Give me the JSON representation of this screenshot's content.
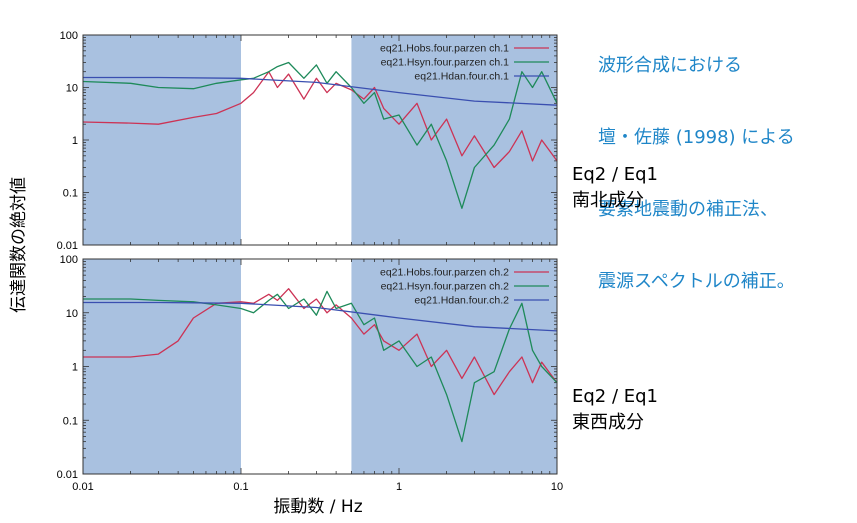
{
  "annotation": {
    "lines": [
      "波形合成における",
      "壇・佐藤 (1998) による",
      "要素地震動の補正法、",
      "震源スペクトルの補正。"
    ],
    "color": "#1f86c8"
  },
  "side_labels": [
    {
      "line1": "Eq2 / Eq1",
      "line2": "南北成分"
    },
    {
      "line1": "Eq2 / Eq1",
      "line2": "東西成分"
    }
  ],
  "colors": {
    "band": "#a9c1e0",
    "obs": "#cc3355",
    "syn": "#1e8a5a",
    "dan": "#3a4fb0"
  },
  "chart_data": [
    {
      "type": "line",
      "panel": "top",
      "x_scale": "log",
      "y_scale": "log",
      "xlim": [
        0.01,
        10
      ],
      "ylim": [
        0.01,
        100
      ],
      "x_ticks": [
        0.01,
        0.1,
        1,
        10
      ],
      "y_ticks": [
        0.01,
        0.1,
        1,
        10,
        100
      ],
      "y_tick_labels": [
        "0.01",
        "0.1",
        "1",
        "10",
        "100"
      ],
      "shaded_x_ranges": [
        [
          0.01,
          0.1
        ],
        [
          0.5,
          10
        ]
      ],
      "legend_position": "top-right",
      "series": [
        {
          "name": "eq21.Hobs.four.parzen ch.1",
          "key": "obs",
          "x": [
            0.01,
            0.02,
            0.03,
            0.05,
            0.07,
            0.1,
            0.12,
            0.15,
            0.17,
            0.2,
            0.25,
            0.3,
            0.35,
            0.4,
            0.5,
            0.6,
            0.7,
            0.8,
            1,
            1.3,
            1.6,
            2,
            2.5,
            3,
            4,
            5,
            6,
            7,
            8,
            10
          ],
          "y": [
            2.2,
            2.1,
            2.0,
            2.7,
            3.2,
            5,
            8,
            20,
            10,
            18,
            6,
            15,
            8,
            12,
            9,
            6,
            10,
            4,
            2,
            5,
            1,
            2.5,
            0.5,
            1.2,
            0.3,
            0.6,
            1.5,
            0.4,
            1.0,
            0.4
          ]
        },
        {
          "name": "eq21.Hsyn.four.parzen ch.1",
          "key": "syn",
          "x": [
            0.01,
            0.02,
            0.03,
            0.05,
            0.07,
            0.1,
            0.12,
            0.15,
            0.17,
            0.2,
            0.25,
            0.3,
            0.35,
            0.4,
            0.5,
            0.6,
            0.7,
            0.8,
            1,
            1.3,
            1.6,
            2,
            2.5,
            3,
            4,
            5,
            6,
            7,
            8,
            10
          ],
          "y": [
            13,
            12,
            10,
            9.5,
            12,
            14,
            15,
            20,
            25,
            30,
            15,
            27,
            12,
            20,
            10,
            5,
            8,
            2.5,
            3,
            0.8,
            2,
            0.4,
            0.05,
            0.3,
            0.8,
            2.5,
            20,
            10,
            20,
            5
          ]
        },
        {
          "name": "eq21.Hdan.four.ch.1",
          "key": "dan",
          "x": [
            0.01,
            0.03,
            0.1,
            0.3,
            1,
            3,
            10
          ],
          "y": [
            15.5,
            15.5,
            15,
            12.5,
            8,
            5.5,
            4.6
          ]
        }
      ]
    },
    {
      "type": "line",
      "panel": "bottom",
      "x_scale": "log",
      "y_scale": "log",
      "xlim": [
        0.01,
        10
      ],
      "ylim": [
        0.01,
        100
      ],
      "x_ticks": [
        0.01,
        0.1,
        1,
        10
      ],
      "x_tick_labels": [
        "0.01",
        "0.1",
        "1",
        "10"
      ],
      "y_ticks": [
        0.01,
        0.1,
        1,
        10,
        100
      ],
      "y_tick_labels": [
        "0.01",
        "0.1",
        "1",
        "10",
        "100"
      ],
      "xlabel": "振動数 / Hz",
      "shaded_x_ranges": [
        [
          0.01,
          0.1
        ],
        [
          0.5,
          10
        ]
      ],
      "legend_position": "top-right",
      "series": [
        {
          "name": "eq21.Hobs.four.parzen ch.2",
          "key": "obs",
          "x": [
            0.01,
            0.02,
            0.03,
            0.04,
            0.05,
            0.07,
            0.1,
            0.12,
            0.15,
            0.17,
            0.2,
            0.25,
            0.3,
            0.35,
            0.4,
            0.5,
            0.6,
            0.7,
            0.8,
            1,
            1.3,
            1.6,
            2,
            2.5,
            3,
            4,
            5,
            6,
            7,
            8,
            10
          ],
          "y": [
            1.5,
            1.5,
            1.7,
            3,
            8,
            15,
            16,
            15,
            22,
            17,
            28,
            12,
            18,
            10,
            14,
            8,
            4,
            6,
            3,
            2,
            4,
            1,
            2,
            0.6,
            1.5,
            0.3,
            0.8,
            1.5,
            0.5,
            1.2,
            0.5
          ]
        },
        {
          "name": "eq21.Hsyn.four.parzen ch.2",
          "key": "syn",
          "x": [
            0.01,
            0.02,
            0.03,
            0.05,
            0.07,
            0.1,
            0.12,
            0.15,
            0.17,
            0.2,
            0.25,
            0.3,
            0.35,
            0.4,
            0.5,
            0.6,
            0.7,
            0.8,
            1,
            1.3,
            1.6,
            2,
            2.5,
            3,
            4,
            5,
            6,
            7,
            8,
            10
          ],
          "y": [
            18,
            18,
            17,
            16,
            14,
            12,
            10,
            17,
            22,
            12,
            18,
            9,
            25,
            12,
            15,
            6,
            8,
            2,
            3,
            1,
            1.5,
            0.3,
            0.04,
            0.5,
            0.8,
            5,
            15,
            2,
            1,
            0.5
          ]
        },
        {
          "name": "eq21.Hdan.four.ch.2",
          "key": "dan",
          "x": [
            0.01,
            0.03,
            0.1,
            0.3,
            1,
            3,
            10
          ],
          "y": [
            15.5,
            15.5,
            15,
            12.5,
            8,
            5.5,
            4.6
          ]
        }
      ]
    }
  ],
  "ylabel": "伝達関数の絶対値"
}
